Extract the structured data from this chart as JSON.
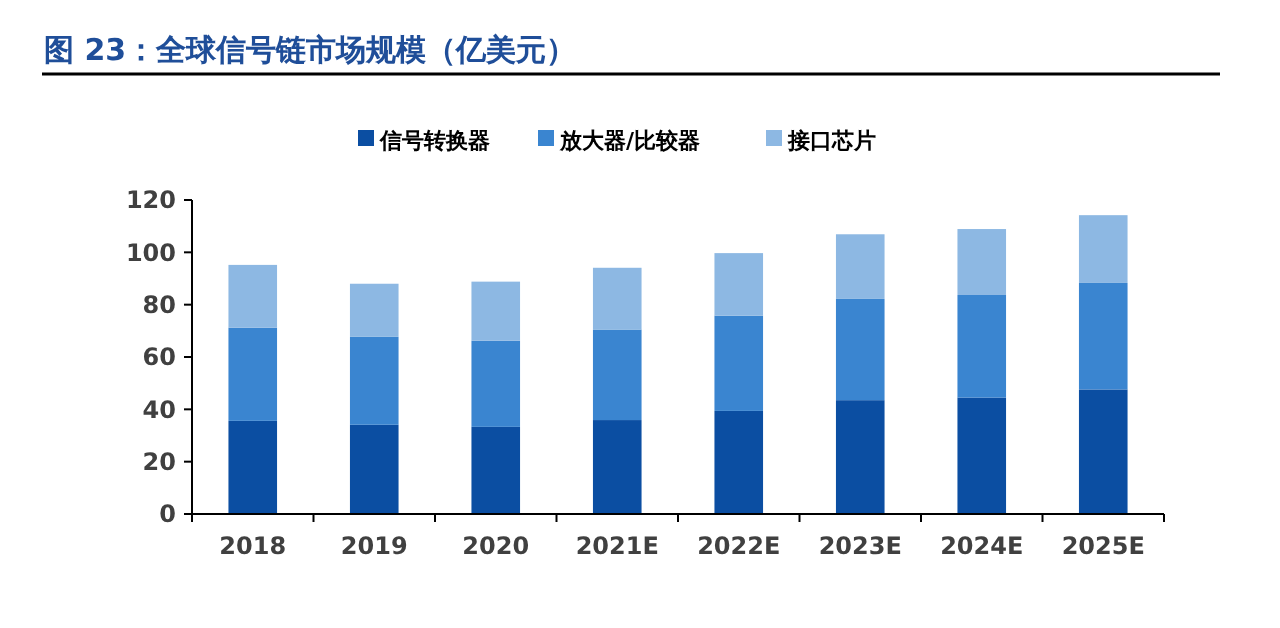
{
  "chart_data": {
    "type": "bar",
    "title": "图 23：全球信号链市场规模（亿美元）",
    "stacked": true,
    "categories": [
      "2018",
      "2019",
      "2020",
      "2021E",
      "2022E",
      "2023E",
      "2024E",
      "2025E"
    ],
    "series": [
      {
        "name": "信号转换器",
        "color": "#0b4ea2",
        "values": [
          35.6,
          34.1,
          33.3,
          35.9,
          39.4,
          43.5,
          44.5,
          47.6
        ]
      },
      {
        "name": "放大器/比较器",
        "color": "#3a85d0",
        "values": [
          35.6,
          33.6,
          32.9,
          34.6,
          36.4,
          38.7,
          39.2,
          40.7
        ]
      },
      {
        "name": "接口芯片",
        "color": "#8db8e3",
        "values": [
          24.0,
          20.3,
          22.6,
          23.6,
          23.9,
          24.7,
          25.2,
          25.9
        ]
      }
    ],
    "ylim": [
      0,
      120
    ],
    "yticks": [
      0,
      20,
      40,
      60,
      80,
      100,
      120
    ],
    "grid": false,
    "legend": "top"
  }
}
